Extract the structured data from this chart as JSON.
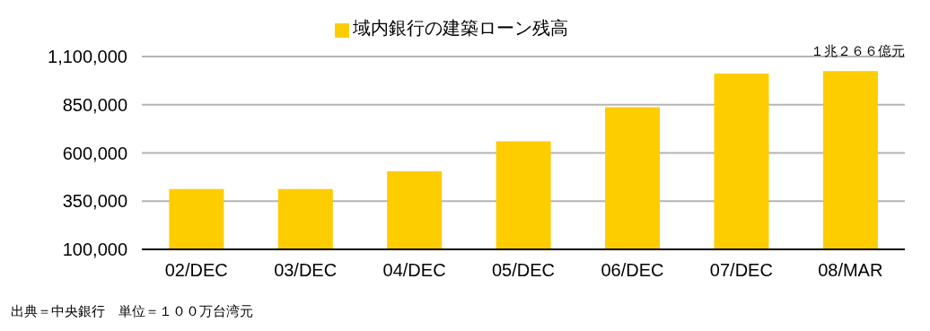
{
  "chart_data": {
    "type": "bar",
    "categories": [
      "02/DEC",
      "03/DEC",
      "04/DEC",
      "05/DEC",
      "06/DEC",
      "07/DEC",
      "08/MAR"
    ],
    "series": [
      {
        "name": "域内銀行の建築ローン残高",
        "color": "#fdcd00",
        "values": [
          413000,
          413000,
          505000,
          660000,
          837000,
          1012000,
          1025000
        ]
      }
    ],
    "ylim": [
      100000,
      1100000
    ],
    "yticks": [
      {
        "value": 100000,
        "label": "100,000"
      },
      {
        "value": 350000,
        "label": "350,000"
      },
      {
        "value": 600000,
        "label": "600,000"
      },
      {
        "value": 850000,
        "label": "850,000"
      },
      {
        "value": 1100000,
        "label": "1,100,000"
      }
    ],
    "grid": "y",
    "legend": "top",
    "annotations": [
      "１兆２６６億元",
      "出典＝中央銀行　単位＝１００万台湾元"
    ]
  }
}
